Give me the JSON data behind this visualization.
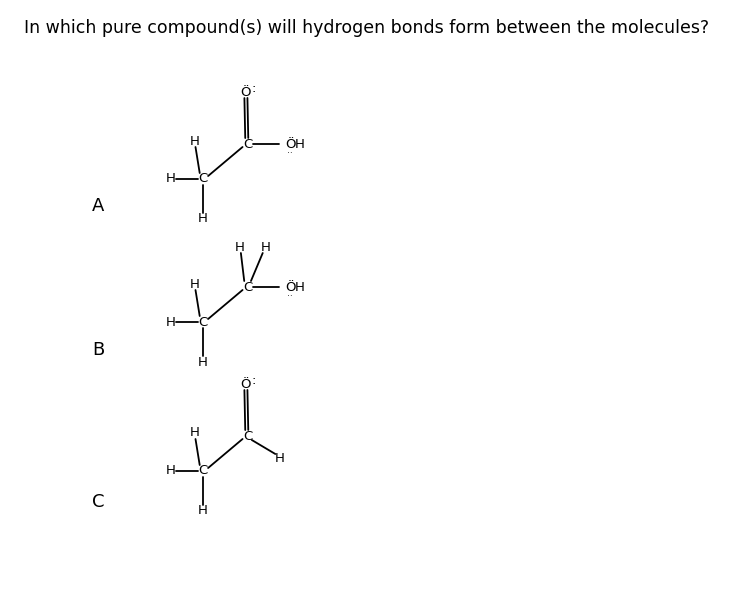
{
  "title": "In which pure compound(s) will hydrogen bonds form between the molecules?",
  "title_fontsize": 12.5,
  "bg_color": "#ffffff",
  "text_color": "#000000",
  "label_A": "A",
  "label_B": "B",
  "label_C": "C",
  "fig_w": 7.33,
  "fig_h": 5.94,
  "mol_scale": 0.55
}
